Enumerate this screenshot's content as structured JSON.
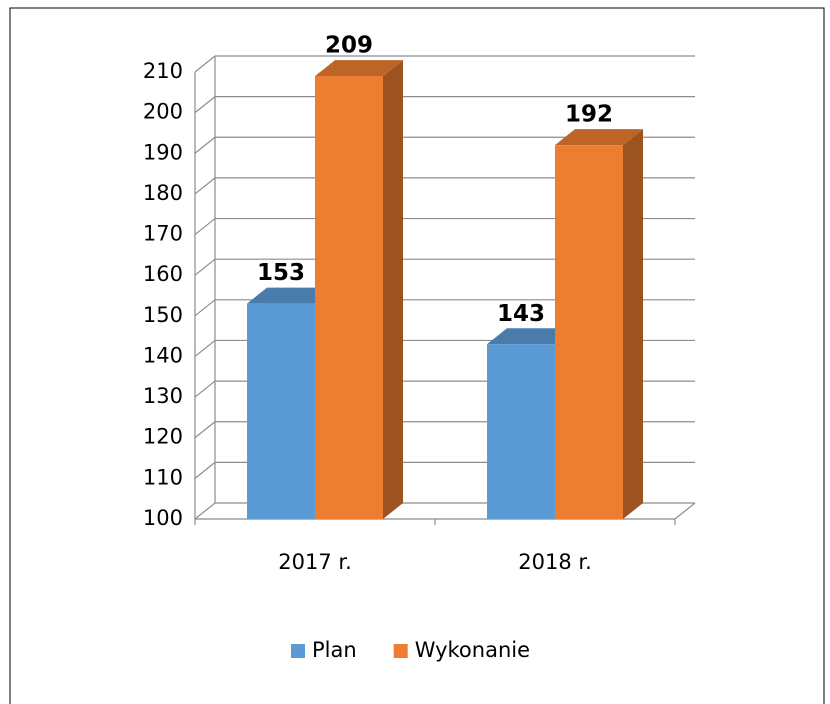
{
  "chart_data": {
    "type": "bar3d",
    "categories": [
      "2017 r.",
      "2018 r."
    ],
    "series": [
      {
        "name": "Plan",
        "color": "#5b9bd5",
        "values": [
          153,
          143
        ]
      },
      {
        "name": "Wykonanie",
        "color": "#ed7d31",
        "values": [
          209,
          192
        ]
      }
    ],
    "ylim": [
      100,
      210
    ],
    "yticks": [
      100,
      110,
      120,
      130,
      140,
      150,
      160,
      170,
      180,
      190,
      200,
      210
    ],
    "grid": true,
    "legend": "bottom"
  }
}
